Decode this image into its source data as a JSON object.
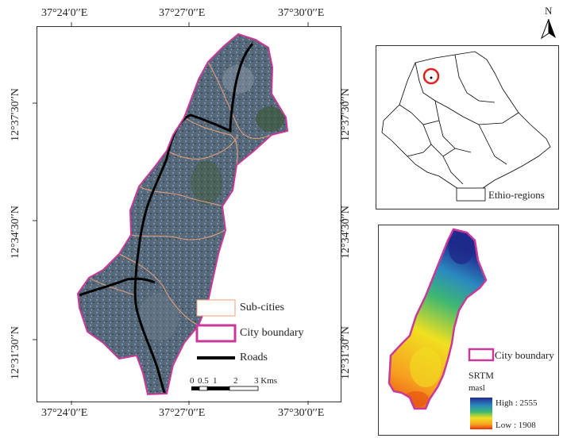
{
  "main_map": {
    "top_ticks": [
      "37°24′0′′E",
      "37°27′0′′E",
      "37°30′0′′E"
    ],
    "bottom_ticks": [
      "37°24′0′′E",
      "37°27′0′′E",
      "37°30′0′′E"
    ],
    "left_ticks": [
      "12°37′30′′N",
      "12°34′30′′N",
      "12°31′30′′N"
    ],
    "right_ticks": [
      "12°37′30′′N",
      "12°34′30′′N",
      "12°31′30′′N"
    ],
    "legend": {
      "sub_cities": "Sub-cities",
      "city_boundary": "City boundary",
      "roads": "Roads"
    },
    "scale_labels": [
      "0",
      "0.5",
      "1",
      "2",
      "3 Kms"
    ],
    "colors": {
      "boundary": "#c8399a",
      "subcity": "#e8a07a",
      "road": "#000000",
      "imagery": "#4f6478"
    }
  },
  "north_arrow": {
    "label": "N"
  },
  "inset_map": {
    "legend": "Ethio-regions",
    "highlight_color": "#e02020"
  },
  "dem_map": {
    "legend_boundary": "City boundary",
    "srtm_label": "SRTM",
    "unit_label": "masl",
    "high_label": "High : 2555",
    "low_label": "Low : 1908"
  }
}
